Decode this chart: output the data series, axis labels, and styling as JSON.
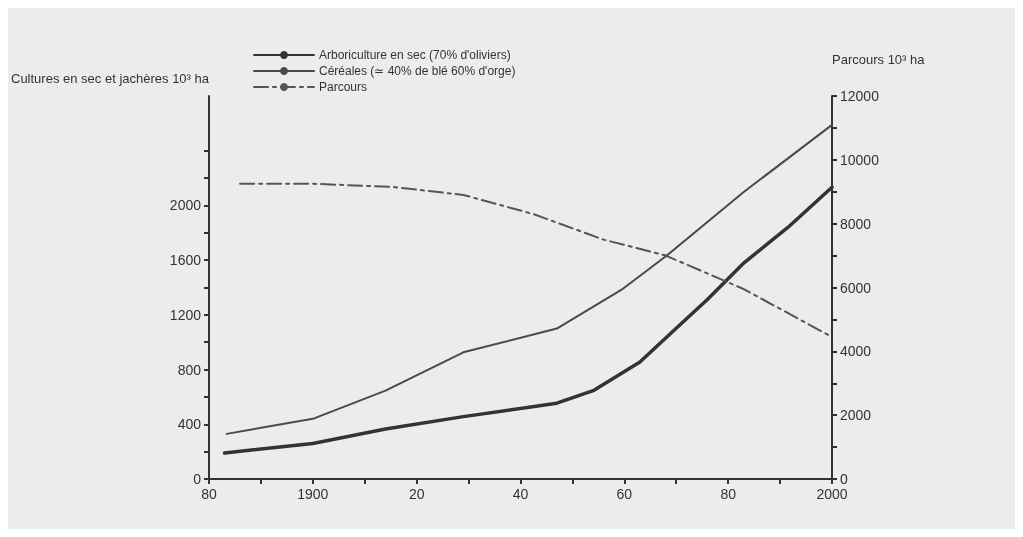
{
  "chart_data": {
    "type": "line",
    "ylabel": "Cultures en sec et jachères 10³ ha",
    "y2label": "Parcours 10³ ha",
    "xlim": [
      1880,
      2000
    ],
    "xticks": [
      {
        "value": 1880,
        "label": "80"
      },
      {
        "value": 1890,
        "label": null
      },
      {
        "value": 1900,
        "label": "1900"
      },
      {
        "value": 1910,
        "label": null
      },
      {
        "value": 1920,
        "label": "20"
      },
      {
        "value": 1930,
        "label": null
      },
      {
        "value": 1940,
        "label": "40"
      },
      {
        "value": 1950,
        "label": null
      },
      {
        "value": 1960,
        "label": "60"
      },
      {
        "value": 1970,
        "label": null
      },
      {
        "value": 1980,
        "label": "80"
      },
      {
        "value": 1990,
        "label": null
      },
      {
        "value": 2000,
        "label": "2000"
      }
    ],
    "ylim": [
      0,
      2800
    ],
    "yticks": [
      0,
      {
        "value": 200,
        "label": null
      },
      400,
      {
        "value": 600,
        "label": null
      },
      800,
      {
        "value": 1000,
        "label": null
      },
      1200,
      {
        "value": 1400,
        "label": null
      },
      1600,
      {
        "value": 1800,
        "label": null
      },
      2000,
      {
        "value": 2200,
        "label": null
      },
      {
        "value": 2400,
        "label": null
      }
    ],
    "y2lim": [
      0,
      12000
    ],
    "y2ticks": [
      0,
      {
        "value": 1000,
        "label": null
      },
      2000,
      {
        "value": 3000,
        "label": null
      },
      4000,
      {
        "value": 5000,
        "label": null
      },
      6000,
      {
        "value": 7000,
        "label": null
      },
      8000,
      {
        "value": 9000,
        "label": null
      },
      10000,
      {
        "value": 11000,
        "label": null
      },
      12000
    ],
    "legend": "top left",
    "grid": false,
    "marker": "none",
    "series": [
      {
        "name": "Arboriculture en sec (70% d'oliviers)",
        "color": "#333333",
        "line_style": "solid",
        "x": [
          1883,
          1900,
          1914,
          1929,
          1947,
          1954,
          1963,
          1970,
          1976,
          1983,
          1991.5,
          2000
        ],
        "values": [
          190,
          260,
          365,
          456,
          554,
          646,
          856,
          1102,
          1312,
          1579,
          1839,
          2133
        ]
      },
      {
        "name": "Céréales (≃ 40% de blé 60% d'orge)",
        "color": "#4a4a4a",
        "line_style": "solid",
        "x": [
          1883.4,
          1900,
          1914,
          1929,
          1947,
          1959.4,
          1968,
          1983,
          2000
        ],
        "values": [
          330,
          440,
          646,
          926,
          1100,
          1382,
          1628,
          2098,
          2589
        ]
      },
      {
        "name": "Parcours",
        "color": "#555555",
        "line_style": "dashed",
        "axis": "y2",
        "x": [
          1886,
          1900,
          1915.5,
          1929,
          1942.5,
          1956,
          1968,
          1983,
          2000
        ],
        "values": [
          9250,
          9250,
          9150,
          8900,
          8300,
          7500,
          7000,
          5950,
          4450
        ]
      }
    ]
  }
}
